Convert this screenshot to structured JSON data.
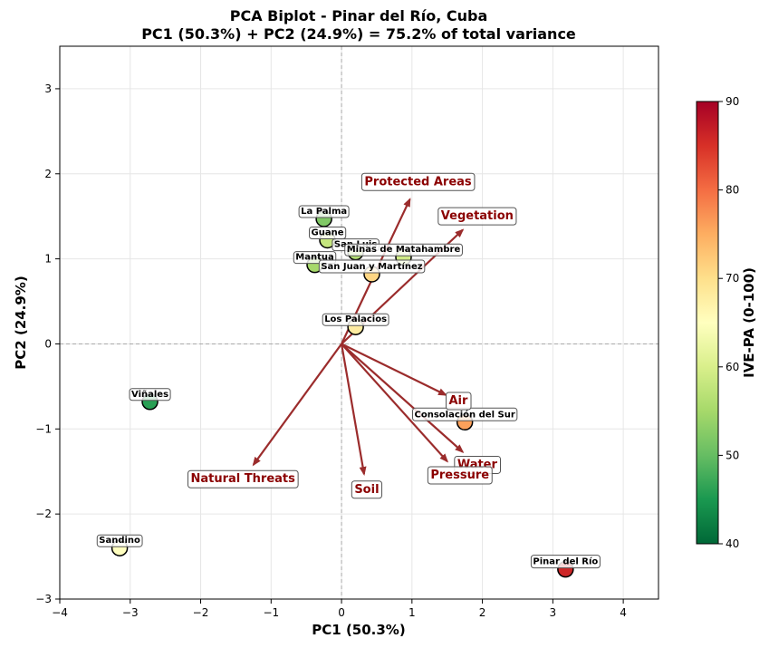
{
  "chart_data": {
    "type": "scatter",
    "title": "PCA Biplot - Pinar del Río, Cuba",
    "subtitle": "PC1 (50.3%) + PC2 (24.9%) = 75.2% of total variance",
    "xlabel": "PC1 (50.3%)",
    "ylabel": "PC2 (24.9%)",
    "xlim": [
      -4,
      4.5
    ],
    "ylim": [
      -3,
      3.5
    ],
    "xticks": [
      -4,
      -3,
      -2,
      -1,
      0,
      1,
      2,
      3,
      4
    ],
    "yticks": [
      -3,
      -2,
      -1,
      0,
      1,
      2,
      3
    ],
    "xtick_labels": [
      "−4",
      "−3",
      "−2",
      "−1",
      "0",
      "1",
      "2",
      "3",
      "4"
    ],
    "ytick_labels": [
      "−3",
      "−2",
      "−1",
      "0",
      "1",
      "2",
      "3"
    ],
    "grid": true,
    "points": [
      {
        "label": "La Palma",
        "x": -0.25,
        "y": 1.47,
        "value": 52
      },
      {
        "label": "Guane",
        "x": -0.2,
        "y": 1.22,
        "value": 58
      },
      {
        "label": "San Luis",
        "x": 0.2,
        "y": 1.08,
        "value": 56
      },
      {
        "label": "Minas de Matahambre",
        "x": 0.88,
        "y": 1.02,
        "value": 59
      },
      {
        "label": "Mantua",
        "x": -0.38,
        "y": 0.93,
        "value": 55
      },
      {
        "label": "San Juan y Martínez",
        "x": 0.43,
        "y": 0.82,
        "value": 71
      },
      {
        "label": "Los Palacios",
        "x": 0.2,
        "y": 0.2,
        "value": 68
      },
      {
        "label": "Viñales",
        "x": -2.72,
        "y": -0.68,
        "value": 46
      },
      {
        "label": "Consolación del Sur",
        "x": 1.75,
        "y": -0.92,
        "value": 76
      },
      {
        "label": "Sandino",
        "x": -3.15,
        "y": -2.4,
        "value": 65
      },
      {
        "label": "Pinar del Río",
        "x": 3.18,
        "y": -2.65,
        "value": 86
      }
    ],
    "vectors": [
      {
        "label": "Protected Areas",
        "x": 0.97,
        "y": 1.7
      },
      {
        "label": "Vegetation",
        "x": 1.72,
        "y": 1.34
      },
      {
        "label": "Air",
        "x": 1.48,
        "y": -0.6
      },
      {
        "label": "Water",
        "x": 1.72,
        "y": -1.27
      },
      {
        "label": "Pressure",
        "x": 1.5,
        "y": -1.38
      },
      {
        "label": "Soil",
        "x": 0.32,
        "y": -1.53
      },
      {
        "label": "Natural Threats",
        "x": -1.25,
        "y": -1.42
      }
    ],
    "colorbar": {
      "label": "IVE-PA (0-100)",
      "min": 40,
      "max": 90,
      "ticks": [
        40,
        50,
        60,
        70,
        80,
        90
      ],
      "colormap": "RdYlGn_r"
    }
  }
}
